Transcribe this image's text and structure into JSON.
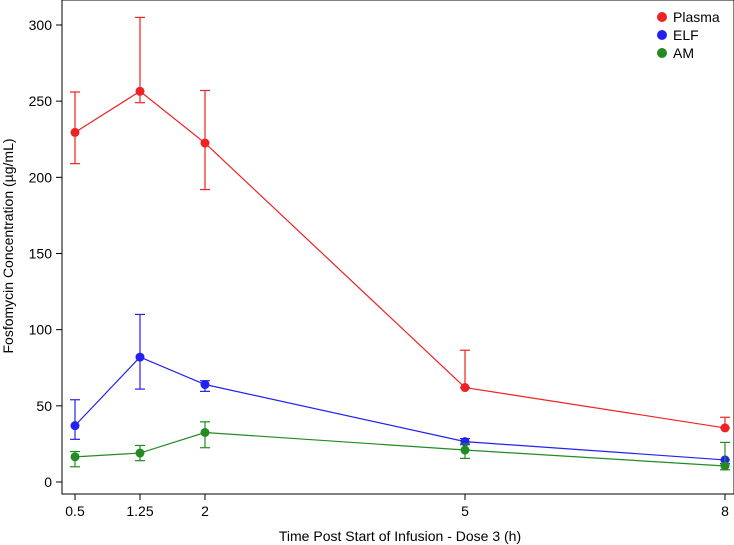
{
  "chart_data": {
    "type": "line",
    "title": "",
    "xlabel": "Time Post Start of Infusion - Dose 3 (h)",
    "ylabel": "Fosfomycin Concentration (µg/mL)",
    "xlim": [
      0.5,
      8
    ],
    "ylim": [
      0,
      300
    ],
    "x_ticks": [
      0.5,
      1.25,
      2,
      5,
      8
    ],
    "x_tick_labels": [
      "0.5",
      "1.25",
      "2",
      "5",
      "8"
    ],
    "y_ticks": [
      0,
      50,
      100,
      150,
      200,
      250,
      300
    ],
    "y_tick_labels": [
      "0",
      "50",
      "100",
      "150",
      "200",
      "250",
      "300"
    ],
    "grid": false,
    "legend_position": "top-right",
    "x": [
      0.5,
      1.25,
      2,
      5,
      8
    ],
    "series": [
      {
        "name": "Plasma",
        "color": "#ee2222",
        "values": [
          229.5,
          256.5,
          222.5,
          62,
          35.5
        ],
        "err_low": [
          209,
          249,
          192,
          62,
          35.5
        ],
        "err_high": [
          256,
          305,
          257,
          86.5,
          42.5
        ]
      },
      {
        "name": "ELF",
        "color": "#2222ee",
        "values": [
          37,
          82,
          64,
          26.5,
          14.5
        ],
        "err_low": [
          28,
          61,
          59.5,
          24.5,
          12
        ],
        "err_high": [
          54,
          110,
          66.5,
          28.5,
          14.5
        ]
      },
      {
        "name": "AM",
        "color": "#228b22",
        "values": [
          16.5,
          19,
          32.5,
          21,
          10.5
        ],
        "err_low": [
          10,
          14,
          22.5,
          15.5,
          8
        ],
        "err_high": [
          20,
          24,
          39.5,
          25,
          26
        ]
      }
    ]
  }
}
